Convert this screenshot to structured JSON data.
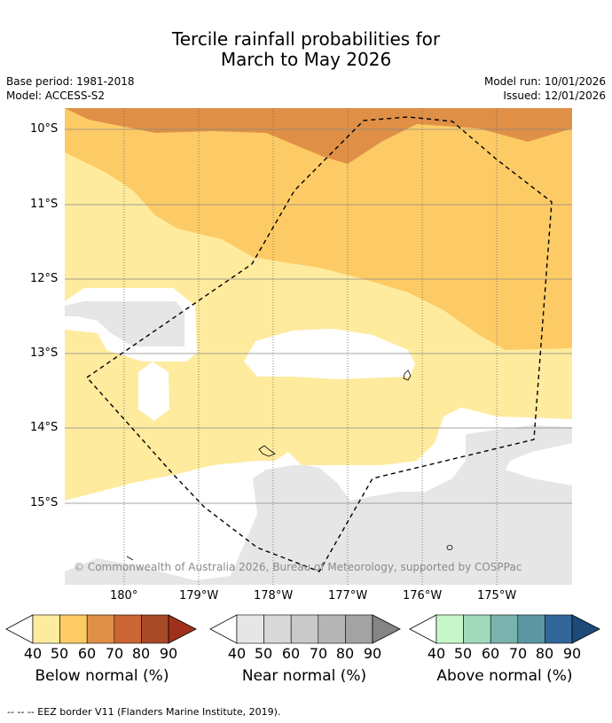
{
  "title": {
    "line1": "Tercile rainfall probabilities for",
    "line2": "March to May 2026"
  },
  "metadata": {
    "base_period": "Base period: 1981-2018",
    "model": "Model: ACCESS-S2",
    "model_run": "Model run: 10/01/2026",
    "issued": "Issued: 12/01/2026"
  },
  "map": {
    "latitude_labels": [
      "10°S",
      "11°S",
      "12°S",
      "13°S",
      "14°S",
      "15°S"
    ],
    "longitude_labels": [
      "180°",
      "179°W",
      "178°W",
      "177°W",
      "176°W",
      "175°W"
    ],
    "copyright": "© Commonwealth of Australia 2026, Bureau of Meteorology, supported by COSPPac",
    "colors": {
      "below_40": "#feeb9e",
      "below_50": "#fdcb65",
      "below_60": "#df9046",
      "near_40": "#e6e6e6",
      "border": "#000000"
    }
  },
  "colorbars": [
    {
      "label": "Below normal (%)",
      "ticks": [
        "40",
        "50",
        "60",
        "70",
        "80",
        "90"
      ],
      "colors": [
        "#feeb9e",
        "#fdcb65",
        "#df9046",
        "#cb6634",
        "#a84a28",
        "#a0301c"
      ]
    },
    {
      "label": "Near normal (%)",
      "ticks": [
        "40",
        "50",
        "60",
        "70",
        "80",
        "90"
      ],
      "colors": [
        "#e6e6e6",
        "#d8d8d8",
        "#c9c9c9",
        "#b5b5b5",
        "#a3a3a3",
        "#858585"
      ]
    },
    {
      "label": "Above normal (%)",
      "ticks": [
        "40",
        "50",
        "60",
        "70",
        "80",
        "90"
      ],
      "colors": [
        "#c7f6c9",
        "#a1d9bc",
        "#7ab3ae",
        "#5c96a2",
        "#346799",
        "#1c4b7a"
      ]
    }
  ],
  "footer": "--  --  -- EEZ border V11 (Flanders Marine Institute, 2019)."
}
